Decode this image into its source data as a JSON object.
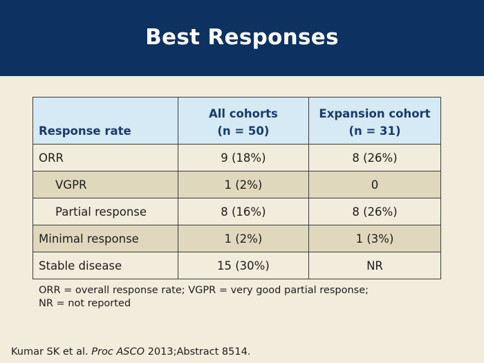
{
  "slide": {
    "title": "Best Responses"
  },
  "table": {
    "headers": {
      "label": "Response rate",
      "all_line1": "All cohorts",
      "all_line2": "(n = 50)",
      "exp_line1": "Expansion cohort",
      "exp_line2": "(n = 31)"
    },
    "rows": [
      {
        "label": "ORR",
        "all": "9 (18%)",
        "exp": "8 (26%)"
      },
      {
        "label": "VGPR",
        "all": "1 (2%)",
        "exp": "0"
      },
      {
        "label": "Partial response",
        "all": "8 (16%)",
        "exp": "8 (26%)"
      },
      {
        "label": "Minimal response",
        "all": "1 (2%)",
        "exp": "1 (3%)"
      },
      {
        "label": "Stable disease",
        "all": "15 (30%)",
        "exp": "NR"
      }
    ]
  },
  "footnote": {
    "line1": "ORR = overall response rate; VGPR = very good partial response;",
    "line2": "NR = not reported"
  },
  "citation": {
    "authors": "Kumar SK et al.",
    "journal": "Proc ASCO",
    "details": "2013;Abstract 8514."
  },
  "colors": {
    "title_band": "#0d3160",
    "background": "#f1ecdb",
    "header_bg": "#d5eaf4",
    "row_shade": "#e0d8bd"
  }
}
